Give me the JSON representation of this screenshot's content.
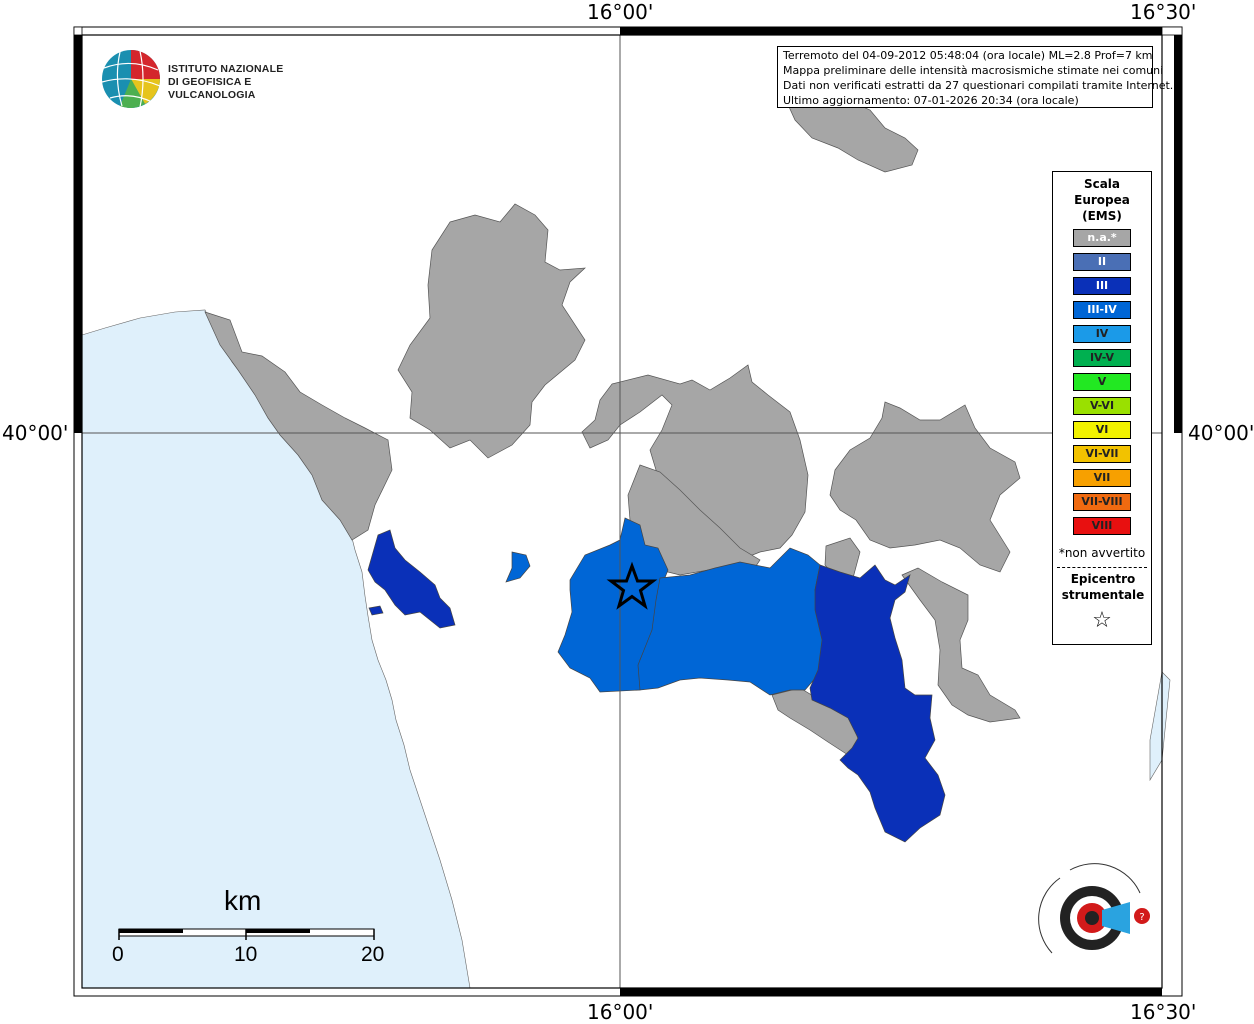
{
  "header": {
    "info_lines": [
      "Terremoto del 04-09-2012 05:48:04 (ora locale) ML=2.8 Prof=7 km",
      "Mappa preliminare delle intensità macrosismiche stimate nei comuni",
      "Dati non verificati estratti da 27 questionari compilati tramite Internet.",
      "Ultimo aggiornamento: 07-01-2026 20:34 (ora locale)"
    ]
  },
  "coordinates": {
    "top_mid": "16°00'",
    "top_right": "16°30'",
    "bottom_mid": "16°00'",
    "bottom_right": "16°30'",
    "left": "40°00'",
    "right": "40°00'"
  },
  "logo": {
    "line1": "ISTITUTO NAZIONALE",
    "line2": "DI GEOFISICA E VULCANOLOGIA"
  },
  "legend": {
    "title": "Scala Europea (EMS)",
    "items": [
      {
        "label": "n.a.*",
        "color": "#a6a6a6"
      },
      {
        "label": "II",
        "color": "#4a6fb5"
      },
      {
        "label": "III",
        "color": "#0a30b8"
      },
      {
        "label": "III-IV",
        "color": "#0066d6"
      },
      {
        "label": "IV",
        "color": "#1b9ae8"
      },
      {
        "label": "IV-V",
        "color": "#00b050"
      },
      {
        "label": "V",
        "color": "#22e822"
      },
      {
        "label": "V-VI",
        "color": "#9ae000"
      },
      {
        "label": "VI",
        "color": "#f2f200"
      },
      {
        "label": "VI-VII",
        "color": "#f2c200"
      },
      {
        "label": "VII",
        "color": "#f7a000"
      },
      {
        "label": "VII-VIII",
        "color": "#f06a10"
      },
      {
        "label": "VIII",
        "color": "#e81010"
      }
    ],
    "note": "*non avvertito",
    "epicenter": "Epicentro strumentale"
  },
  "scale_bar": {
    "unit": "km",
    "ticks": [
      "0",
      "10",
      "20"
    ]
  },
  "colors": {
    "sea": "#dff0fb",
    "na": "#a6a6a6",
    "iii": "#0a30b8",
    "iii_iv": "#0066d6"
  }
}
